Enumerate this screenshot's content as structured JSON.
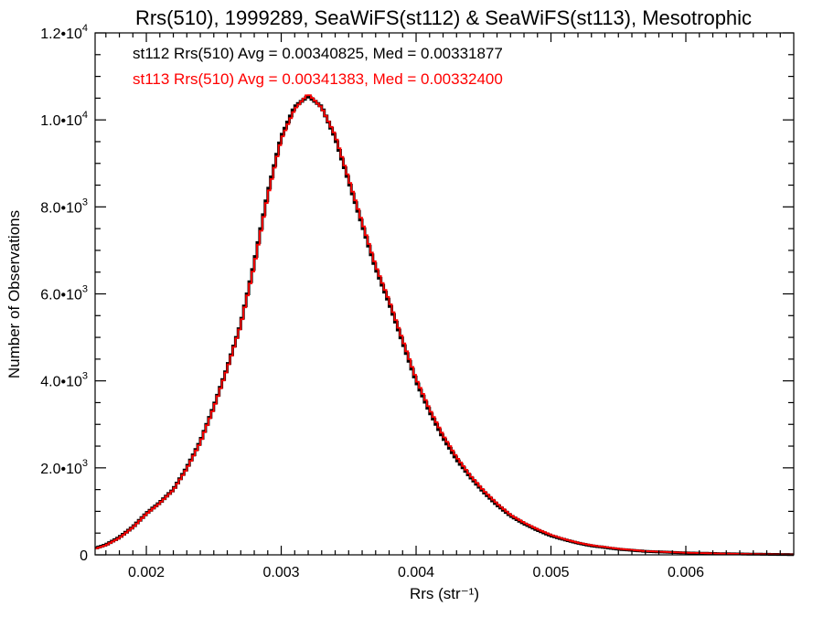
{
  "chart_data": {
    "type": "line",
    "step": true,
    "title": "Rrs(510), 1999289, SeaWiFS(st112) & SeaWiFS(st113), Mesotrophic",
    "xlabel": "Rrs (str⁻¹)",
    "ylabel": "Number of Observations",
    "xlim": [
      0.00162,
      0.0068
    ],
    "ylim": [
      0,
      12000
    ],
    "grid": false,
    "x_ticks": [
      {
        "value": 0.002,
        "label": "0.002"
      },
      {
        "value": 0.003,
        "label": "0.003"
      },
      {
        "value": 0.004,
        "label": "0.004"
      },
      {
        "value": 0.005,
        "label": "0.005"
      },
      {
        "value": 0.006,
        "label": "0.006"
      }
    ],
    "y_ticks": [
      {
        "value": 0,
        "mant": "0",
        "exp": ""
      },
      {
        "value": 2000,
        "mant": "2.0•10",
        "exp": "3"
      },
      {
        "value": 4000,
        "mant": "4.0•10",
        "exp": "3"
      },
      {
        "value": 6000,
        "mant": "6.0•10",
        "exp": "3"
      },
      {
        "value": 8000,
        "mant": "8.0•10",
        "exp": "3"
      },
      {
        "value": 10000,
        "mant": "1.0•10",
        "exp": "4"
      },
      {
        "value": 12000,
        "mant": "1.2•10",
        "exp": "4"
      }
    ],
    "annotations": [
      {
        "text": "st112 Rrs(510) Avg = 0.00340825, Med = 0.00331877",
        "color": "#000000"
      },
      {
        "text": "st113 Rrs(510) Avg = 0.00341383, Med = 0.00332400",
        "color": "#ff0000"
      }
    ],
    "series": [
      {
        "color": "#000000",
        "points": [
          [
            0.00162,
            150
          ],
          [
            0.0017,
            230
          ],
          [
            0.0018,
            400
          ],
          [
            0.0019,
            640
          ],
          [
            0.002,
            950
          ],
          [
            0.0021,
            1200
          ],
          [
            0.0022,
            1500
          ],
          [
            0.0023,
            2000
          ],
          [
            0.0024,
            2600
          ],
          [
            0.0025,
            3400
          ],
          [
            0.0026,
            4300
          ],
          [
            0.0027,
            5300
          ],
          [
            0.0028,
            6700
          ],
          [
            0.0029,
            8300
          ],
          [
            0.003,
            9600
          ],
          [
            0.0031,
            10300
          ],
          [
            0.0032,
            10550
          ],
          [
            0.0033,
            10300
          ],
          [
            0.0034,
            9600
          ],
          [
            0.0035,
            8600
          ],
          [
            0.0036,
            7600
          ],
          [
            0.0037,
            6600
          ],
          [
            0.0038,
            5800
          ],
          [
            0.0039,
            4900
          ],
          [
            0.004,
            4000
          ],
          [
            0.0041,
            3300
          ],
          [
            0.0042,
            2700
          ],
          [
            0.0043,
            2200
          ],
          [
            0.0044,
            1800
          ],
          [
            0.0045,
            1450
          ],
          [
            0.0046,
            1150
          ],
          [
            0.0047,
            900
          ],
          [
            0.0048,
            720
          ],
          [
            0.0049,
            570
          ],
          [
            0.005,
            440
          ],
          [
            0.0051,
            350
          ],
          [
            0.0052,
            270
          ],
          [
            0.0053,
            210
          ],
          [
            0.0055,
            130
          ],
          [
            0.0057,
            80
          ],
          [
            0.006,
            45
          ],
          [
            0.0063,
            25
          ],
          [
            0.0066,
            12
          ],
          [
            0.0068,
            6
          ]
        ]
      },
      {
        "color": "#ff0000",
        "points": [
          [
            0.00162,
            140
          ],
          [
            0.0017,
            220
          ],
          [
            0.0018,
            390
          ],
          [
            0.0019,
            630
          ],
          [
            0.002,
            940
          ],
          [
            0.0021,
            1190
          ],
          [
            0.0022,
            1490
          ],
          [
            0.0023,
            1980
          ],
          [
            0.0024,
            2580
          ],
          [
            0.0025,
            3380
          ],
          [
            0.0026,
            4280
          ],
          [
            0.0027,
            5280
          ],
          [
            0.0028,
            6650
          ],
          [
            0.0029,
            8250
          ],
          [
            0.003,
            9550
          ],
          [
            0.0031,
            10250
          ],
          [
            0.0032,
            10600
          ],
          [
            0.0033,
            10280
          ],
          [
            0.0034,
            9650
          ],
          [
            0.0035,
            8650
          ],
          [
            0.0036,
            7650
          ],
          [
            0.0037,
            6650
          ],
          [
            0.0038,
            5850
          ],
          [
            0.0039,
            4950
          ],
          [
            0.004,
            4050
          ],
          [
            0.0041,
            3350
          ],
          [
            0.0042,
            2750
          ],
          [
            0.0043,
            2250
          ],
          [
            0.0044,
            1830
          ],
          [
            0.0045,
            1480
          ],
          [
            0.0046,
            1180
          ],
          [
            0.0047,
            920
          ],
          [
            0.0048,
            740
          ],
          [
            0.0049,
            590
          ],
          [
            0.005,
            460
          ],
          [
            0.0051,
            360
          ],
          [
            0.0052,
            280
          ],
          [
            0.0053,
            220
          ],
          [
            0.0055,
            140
          ],
          [
            0.0057,
            85
          ],
          [
            0.006,
            48
          ],
          [
            0.0063,
            27
          ],
          [
            0.0066,
            13
          ],
          [
            0.0068,
            7
          ]
        ]
      }
    ]
  }
}
